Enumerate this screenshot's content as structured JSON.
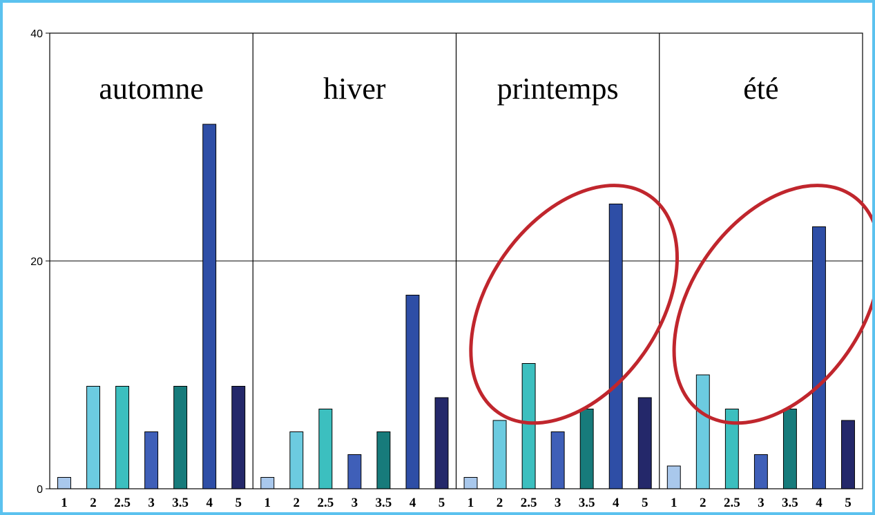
{
  "chart_data": {
    "type": "bar",
    "ylim": [
      0,
      40
    ],
    "yticks": [
      0,
      20,
      40
    ],
    "grid": true,
    "categories": [
      "1",
      "2",
      "2.5",
      "3",
      "3.5",
      "4",
      "5"
    ],
    "colors": [
      "#a9c8ec",
      "#6ccbe0",
      "#3cbfbf",
      "#3f5fb8",
      "#177b7b",
      "#2e4ea6",
      "#24286a"
    ],
    "panels": [
      {
        "title": "automne",
        "values": [
          1,
          9,
          9,
          5,
          9,
          32,
          9
        ]
      },
      {
        "title": "hiver",
        "values": [
          1,
          5,
          7,
          3,
          5,
          17,
          8
        ]
      },
      {
        "title": "printemps",
        "values": [
          1,
          6,
          11,
          5,
          7,
          25,
          8
        ],
        "highlighted": true
      },
      {
        "title": "été",
        "values": [
          2,
          10,
          7,
          3,
          7,
          23,
          6
        ],
        "highlighted": true
      }
    ],
    "highlight_color": "#c0262d"
  }
}
